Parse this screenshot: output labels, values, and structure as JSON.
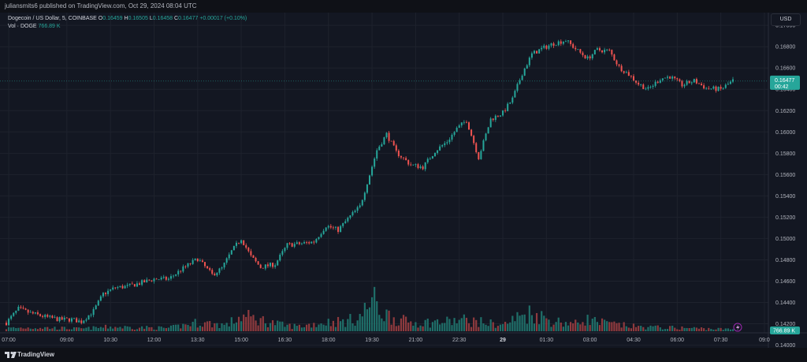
{
  "header": {
    "published_by": "juliansmits6 published on TradingView.com, Oct 29, 2024 08:04 UTC"
  },
  "legend": {
    "symbol": "Dogecoin / US Dollar, 5, COINBASE",
    "o_label": "O",
    "o_value": "0.16459",
    "h_label": "H",
    "h_value": "0.16505",
    "l_label": "L",
    "l_value": "0.16458",
    "c_label": "C",
    "c_value": "0.16477",
    "change": "+0.00017 (+0.10%)",
    "vol_label": "Vol · DOGE",
    "vol_value": "766.89 K"
  },
  "currency_button": "USD",
  "price_badge": {
    "price": "0.16477",
    "countdown": "00:42"
  },
  "volume_badge": "766.89 K",
  "footer": {
    "brand": "TradingView"
  },
  "colors": {
    "background": "#131722",
    "grid": "#1e222d",
    "up": "#26a69a",
    "down": "#ef5350",
    "up_volume": "#1f6f69",
    "down_volume": "#8f3a3e",
    "axis_text": "#b2b5be"
  },
  "chart_data": {
    "type": "candlestick",
    "interval": "5",
    "instrument": "Dogecoin / US Dollar",
    "exchange": "COINBASE",
    "ylim": [
      0.1413,
      0.1709
    ],
    "y_ticks": [
      "0.17000",
      "0.16800",
      "0.16600",
      "0.16400",
      "0.16200",
      "0.16000",
      "0.15800",
      "0.15600",
      "0.15400",
      "0.15200",
      "0.15000",
      "0.14800",
      "0.14600",
      "0.14400",
      "0.14200",
      "0.14000"
    ],
    "x_ticks": [
      "07:00",
      "09:00",
      "10:30",
      "12:00",
      "13:30",
      "15:00",
      "16:30",
      "18:00",
      "19:30",
      "21:00",
      "22:30",
      "29",
      "01:30",
      "03:00",
      "04:30",
      "06:00",
      "07:30",
      "09:0"
    ],
    "x_start_time": "06:55",
    "x_end_time": "07:55",
    "last_price": 0.16477,
    "grid": true,
    "close_path": [
      [
        "06:55",
        0.1421
      ],
      [
        "07:20",
        0.1434
      ],
      [
        "07:45",
        0.143
      ],
      [
        "08:20",
        0.1426
      ],
      [
        "08:45",
        0.1424
      ],
      [
        "09:10",
        0.1424
      ],
      [
        "09:30",
        0.1422
      ],
      [
        "09:55",
        0.1432
      ],
      [
        "10:15",
        0.1448
      ],
      [
        "10:40",
        0.1454
      ],
      [
        "11:05",
        0.1455
      ],
      [
        "11:30",
        0.1458
      ],
      [
        "12:00",
        0.1462
      ],
      [
        "12:30",
        0.1462
      ],
      [
        "13:00",
        0.1472
      ],
      [
        "13:30",
        0.1481
      ],
      [
        "14:00",
        0.1466
      ],
      [
        "14:20",
        0.1472
      ],
      [
        "14:40",
        0.1488
      ],
      [
        "15:00",
        0.15
      ],
      [
        "15:20",
        0.1483
      ],
      [
        "15:40",
        0.1473
      ],
      [
        "16:10",
        0.1476
      ],
      [
        "16:35",
        0.1494
      ],
      [
        "17:00",
        0.1495
      ],
      [
        "17:30",
        0.1497
      ],
      [
        "17:55",
        0.1512
      ],
      [
        "18:20",
        0.1508
      ],
      [
        "18:45",
        0.1521
      ],
      [
        "19:05",
        0.153
      ],
      [
        "19:25",
        0.156
      ],
      [
        "19:40",
        0.1583
      ],
      [
        "20:00",
        0.1598
      ],
      [
        "20:20",
        0.1581
      ],
      [
        "20:50",
        0.1569
      ],
      [
        "21:15",
        0.1567
      ],
      [
        "21:40",
        0.1582
      ],
      [
        "22:05",
        0.1591
      ],
      [
        "22:25",
        0.1603
      ],
      [
        "22:45",
        0.1611
      ],
      [
        "23:10",
        0.1576
      ],
      [
        "23:35",
        0.1612
      ],
      [
        "24:00",
        0.1618
      ],
      [
        "24:20",
        0.1631
      ],
      [
        "24:40",
        0.1655
      ],
      [
        "25:00",
        0.1673
      ],
      [
        "25:20",
        0.1678
      ],
      [
        "25:45",
        0.1683
      ],
      [
        "26:10",
        0.1686
      ],
      [
        "26:35",
        0.1676
      ],
      [
        "26:55",
        0.1669
      ],
      [
        "27:15",
        0.1677
      ],
      [
        "27:40",
        0.1676
      ],
      [
        "28:00",
        0.1661
      ],
      [
        "28:20",
        0.1654
      ],
      [
        "28:40",
        0.1645
      ],
      [
        "29:00",
        0.164
      ],
      [
        "29:25",
        0.165
      ],
      [
        "29:45",
        0.1652
      ],
      [
        "30:10",
        0.1644
      ],
      [
        "30:35",
        0.1648
      ],
      [
        "31:00",
        0.1641
      ],
      [
        "31:30",
        0.164
      ],
      [
        "31:55",
        0.1648
      ]
    ],
    "volume_path": [
      [
        "06:55",
        0.05
      ],
      [
        "08:00",
        0.06
      ],
      [
        "09:30",
        0.04
      ],
      [
        "10:30",
        0.07
      ],
      [
        "11:30",
        0.06
      ],
      [
        "12:30",
        0.05
      ],
      [
        "13:30",
        0.14
      ],
      [
        "14:30",
        0.1
      ],
      [
        "15:00",
        0.24
      ],
      [
        "15:30",
        0.2
      ],
      [
        "16:30",
        0.09
      ],
      [
        "17:00",
        0.08
      ],
      [
        "18:00",
        0.15
      ],
      [
        "18:40",
        0.16
      ],
      [
        "19:10",
        0.26
      ],
      [
        "19:30",
        0.52
      ],
      [
        "19:50",
        0.3
      ],
      [
        "20:30",
        0.17
      ],
      [
        "21:00",
        0.14
      ],
      [
        "22:00",
        0.15
      ],
      [
        "22:40",
        0.18
      ],
      [
        "23:20",
        0.14
      ],
      [
        "24:00",
        0.1
      ],
      [
        "24:40",
        0.26
      ],
      [
        "25:00",
        0.3
      ],
      [
        "25:40",
        0.17
      ],
      [
        "26:30",
        0.12
      ],
      [
        "26:50",
        0.2
      ],
      [
        "27:20",
        0.14
      ],
      [
        "28:00",
        0.1
      ],
      [
        "28:40",
        0.07
      ],
      [
        "29:30",
        0.06
      ],
      [
        "30:30",
        0.05
      ],
      [
        "31:55",
        0.03
      ]
    ]
  }
}
